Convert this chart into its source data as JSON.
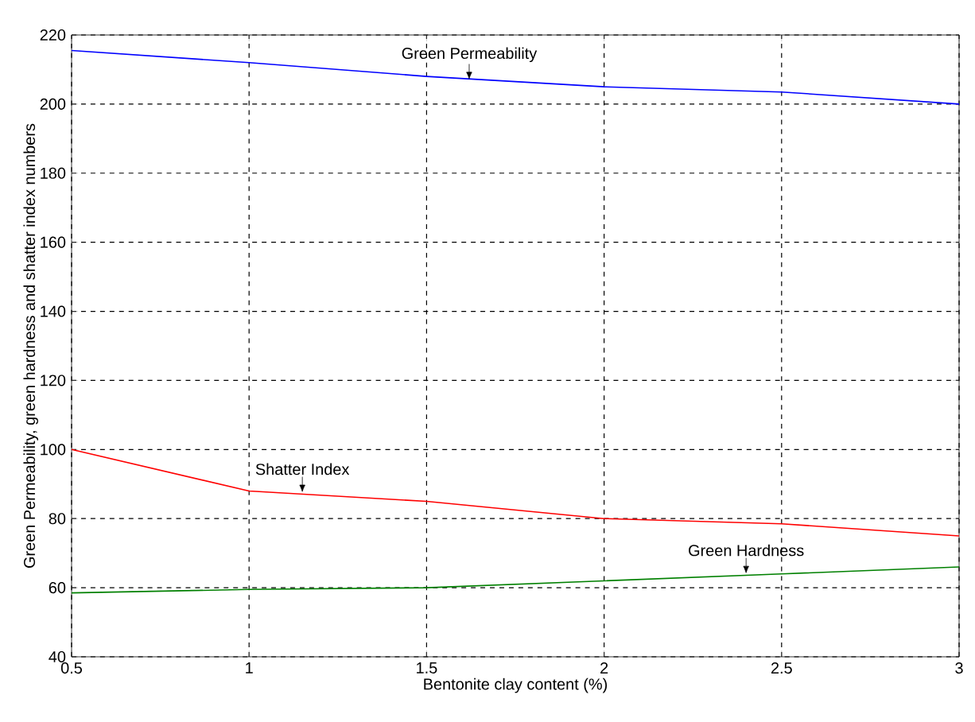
{
  "chart_data": {
    "type": "line",
    "xlabel": "Bentonite clay content (%)",
    "ylabel": "Green Permeability, green hardness and shatter index numbers",
    "x": [
      0.5,
      1,
      1.5,
      2,
      2.5,
      3
    ],
    "series": [
      {
        "color": "#0000ff",
        "values": [
          215.5,
          212,
          208,
          205,
          203.5,
          200
        ]
      },
      {
        "color": "#ff0000",
        "values": [
          100,
          88,
          85,
          80,
          78.5,
          75
        ]
      },
      {
        "color": "#008000",
        "values": [
          58.5,
          59.5,
          60,
          62,
          64,
          66
        ]
      }
    ],
    "annotations": [
      {
        "text": "Green Permeability",
        "x": 1.62,
        "y": 207
      },
      {
        "text": "Shatter Index",
        "x": 1.15,
        "y": 87.5
      },
      {
        "text": "Green Hardness",
        "x": 2.4,
        "y": 64
      }
    ],
    "xlim": [
      0.5,
      3
    ],
    "ylim": [
      40,
      220
    ],
    "xticks": [
      0.5,
      1,
      1.5,
      2,
      2.5,
      3
    ],
    "yticks": [
      40,
      60,
      80,
      100,
      120,
      140,
      160,
      180,
      200,
      220
    ],
    "grid": true,
    "marker": "none",
    "line_style": "solid"
  }
}
